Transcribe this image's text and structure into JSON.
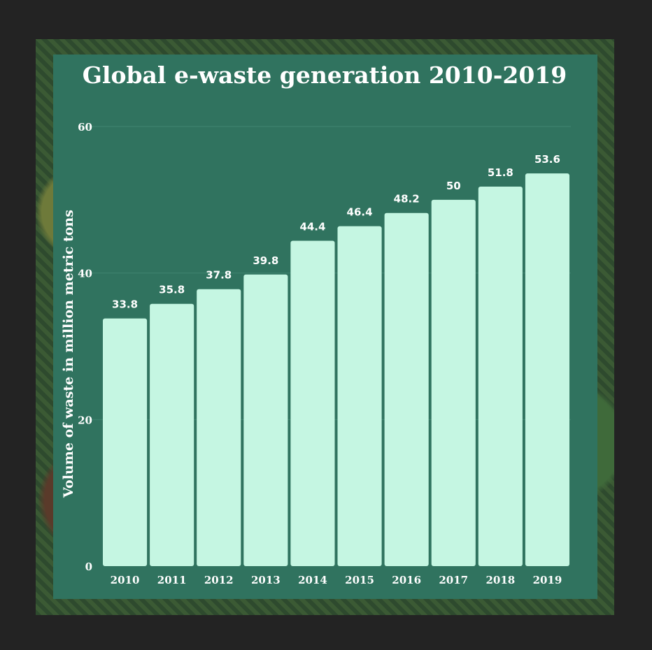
{
  "chart_data": {
    "type": "bar",
    "title": "Global e-waste generation 2010-2019",
    "xlabel": "",
    "ylabel": "Volume of waste in million metric tons",
    "categories": [
      "2010",
      "2011",
      "2012",
      "2013",
      "2014",
      "2015",
      "2016",
      "2017",
      "2018",
      "2019"
    ],
    "values": [
      33.8,
      35.8,
      37.8,
      39.8,
      44.4,
      46.4,
      48.2,
      50,
      51.8,
      53.6
    ],
    "value_labels": [
      "33.8",
      "35.8",
      "37.8",
      "39.8",
      "44.4",
      "46.4",
      "48.2",
      "50",
      "51.8",
      "53.6"
    ],
    "ylim": [
      0,
      60
    ],
    "yticks": [
      0,
      20,
      40,
      60
    ],
    "ytick_labels": [
      "0",
      "20",
      "40",
      "60"
    ],
    "grid": true,
    "colors": {
      "bar": "#c5f6e2",
      "panel": "#30735f",
      "background": "#232323",
      "text": "#ffffff",
      "grid": "#3f8470"
    }
  }
}
